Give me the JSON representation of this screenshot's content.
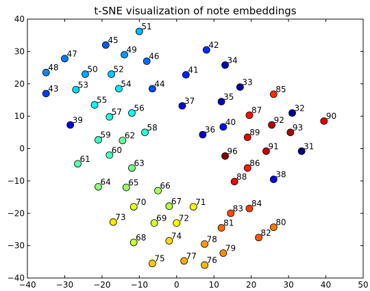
{
  "chart_data": {
    "type": "scatter",
    "title": "t-SNE visualization of note embeddings",
    "xlabel": "",
    "ylabel": "",
    "xlim": [
      -40,
      50
    ],
    "ylim": [
      -40,
      40
    ],
    "xticks": [
      -40,
      -30,
      -20,
      -10,
      0,
      10,
      20,
      30,
      40,
      50
    ],
    "yticks": [
      -40,
      -30,
      -20,
      -10,
      0,
      10,
      20,
      30,
      40
    ],
    "grid": false,
    "colormap": "jet",
    "label_range": [
      31,
      96
    ],
    "points": [
      {
        "label": "31",
        "x": 33.5,
        "y": -0.8
      },
      {
        "label": "32",
        "x": 31.0,
        "y": 11.0
      },
      {
        "label": "33",
        "x": 17.0,
        "y": 19.0
      },
      {
        "label": "34",
        "x": 13.0,
        "y": 25.8
      },
      {
        "label": "35",
        "x": 12.0,
        "y": 14.5
      },
      {
        "label": "36",
        "x": 7.0,
        "y": 4.3
      },
      {
        "label": "37",
        "x": 1.5,
        "y": 13.2
      },
      {
        "label": "38",
        "x": 26.0,
        "y": -9.5
      },
      {
        "label": "39",
        "x": -28.5,
        "y": 7.3
      },
      {
        "label": "40",
        "x": 12.5,
        "y": 6.7
      },
      {
        "label": "41",
        "x": 2.5,
        "y": 22.8
      },
      {
        "label": "42",
        "x": 8.0,
        "y": 30.5
      },
      {
        "label": "43",
        "x": -35.0,
        "y": 17.0
      },
      {
        "label": "44",
        "x": -6.5,
        "y": 18.5
      },
      {
        "label": "45",
        "x": -19.0,
        "y": 32.0
      },
      {
        "label": "46",
        "x": -8.0,
        "y": 27.0
      },
      {
        "label": "47",
        "x": -30.0,
        "y": 27.8
      },
      {
        "label": "48",
        "x": -35.0,
        "y": 23.5
      },
      {
        "label": "49",
        "x": -14.0,
        "y": 29.0
      },
      {
        "label": "50",
        "x": -24.5,
        "y": 23.0
      },
      {
        "label": "51",
        "x": -10.0,
        "y": 36.2
      },
      {
        "label": "52",
        "x": -17.5,
        "y": 23.0
      },
      {
        "label": "53",
        "x": -27.0,
        "y": 18.2
      },
      {
        "label": "54",
        "x": -15.5,
        "y": 18.5
      },
      {
        "label": "55",
        "x": -22.0,
        "y": 13.5
      },
      {
        "label": "56",
        "x": -12.0,
        "y": 11.0
      },
      {
        "label": "57",
        "x": -18.0,
        "y": 9.8
      },
      {
        "label": "58",
        "x": -8.5,
        "y": 5.0
      },
      {
        "label": "59",
        "x": -21.0,
        "y": 2.7
      },
      {
        "label": "60",
        "x": -18.0,
        "y": -2.0
      },
      {
        "label": "61",
        "x": -26.5,
        "y": -4.7
      },
      {
        "label": "62",
        "x": -14.5,
        "y": 2.5
      },
      {
        "label": "63",
        "x": -12.0,
        "y": -6.0
      },
      {
        "label": "64",
        "x": -21.0,
        "y": -11.8
      },
      {
        "label": "65",
        "x": -13.5,
        "y": -12.0
      },
      {
        "label": "66",
        "x": -5.0,
        "y": -13.0
      },
      {
        "label": "67",
        "x": -2.0,
        "y": -17.8
      },
      {
        "label": "68",
        "x": -11.5,
        "y": -29.0
      },
      {
        "label": "69",
        "x": -6.0,
        "y": -23.0
      },
      {
        "label": "70",
        "x": -11.5,
        "y": -18.0
      },
      {
        "label": "71",
        "x": 4.5,
        "y": -18.0
      },
      {
        "label": "72",
        "x": 0.0,
        "y": -23.0
      },
      {
        "label": "73",
        "x": -17.0,
        "y": -22.7
      },
      {
        "label": "74",
        "x": -2.0,
        "y": -28.5
      },
      {
        "label": "75",
        "x": -6.5,
        "y": -35.5
      },
      {
        "label": "76",
        "x": 7.5,
        "y": -36.0
      },
      {
        "label": "77",
        "x": 2.0,
        "y": -34.7
      },
      {
        "label": "78",
        "x": 7.5,
        "y": -29.5
      },
      {
        "label": "79",
        "x": 12.5,
        "y": -32.3
      },
      {
        "label": "80",
        "x": 26.0,
        "y": -24.3
      },
      {
        "label": "81",
        "x": 12.0,
        "y": -24.5
      },
      {
        "label": "82",
        "x": 22.0,
        "y": -27.5
      },
      {
        "label": "83",
        "x": 14.5,
        "y": -20.0
      },
      {
        "label": "84",
        "x": 19.5,
        "y": -18.5
      },
      {
        "label": "85",
        "x": 26.0,
        "y": 16.8
      },
      {
        "label": "86",
        "x": 19.0,
        "y": -6.0
      },
      {
        "label": "87",
        "x": 19.5,
        "y": 10.3
      },
      {
        "label": "88",
        "x": 15.5,
        "y": -10.2
      },
      {
        "label": "89",
        "x": 19.0,
        "y": 3.5
      },
      {
        "label": "90",
        "x": 39.5,
        "y": 8.5
      },
      {
        "label": "91",
        "x": 24.0,
        "y": -0.8
      },
      {
        "label": "92",
        "x": 25.5,
        "y": 7.3
      },
      {
        "label": "93",
        "x": 30.5,
        "y": 5.0
      },
      {
        "label": "96",
        "x": 13.0,
        "y": -2.3
      }
    ]
  }
}
